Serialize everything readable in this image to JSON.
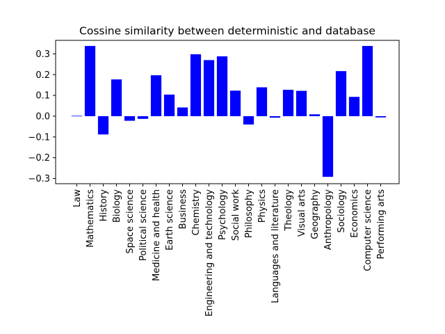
{
  "chart_data": {
    "type": "bar",
    "title": "Cossine similarity between deterministic and database",
    "xlabel": "",
    "ylabel": "",
    "categories": [
      "Law",
      "Mathematics",
      "History",
      "Biology",
      "Space science",
      "Political science",
      "Medicine and health",
      "Earth science",
      "Business",
      "Chemistry",
      "Engineering and technology",
      "Psychology",
      "Social work",
      "Philosophy",
      "Physics",
      "Languages and literature",
      "Theology",
      "Visual arts",
      "Geography",
      "Anthropology",
      "Sociology",
      "Economics",
      "Computer science",
      "Performing arts"
    ],
    "values": [
      0.002,
      0.338,
      -0.088,
      0.177,
      -0.022,
      -0.013,
      0.197,
      0.104,
      0.042,
      0.298,
      0.27,
      0.288,
      0.123,
      -0.04,
      0.139,
      -0.007,
      0.127,
      0.122,
      0.009,
      -0.292,
      0.217,
      0.093,
      0.338,
      -0.006
    ],
    "ylim": [
      -0.325,
      0.365
    ],
    "yticks": [
      -0.3,
      -0.2,
      -0.1,
      0.0,
      0.1,
      0.2,
      0.3
    ],
    "ytick_labels": [
      "−0.3",
      "−0.2",
      "−0.1",
      "0.0",
      "0.1",
      "0.2",
      "0.3"
    ],
    "bar_color": "#0000ff",
    "grid": false,
    "legend": "none"
  }
}
